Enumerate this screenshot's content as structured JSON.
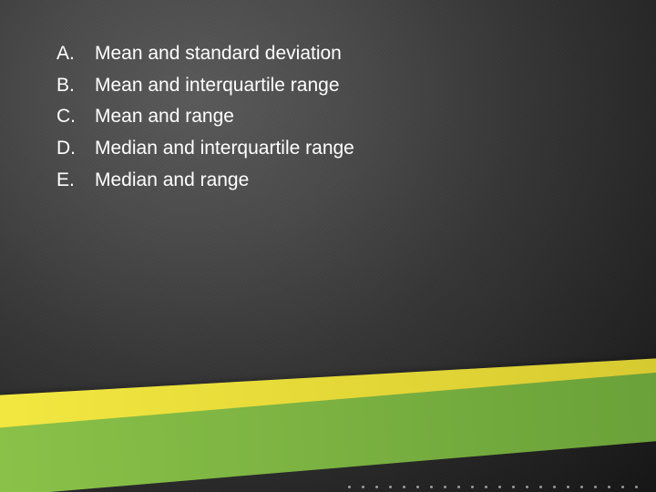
{
  "options": [
    {
      "letter": "A.",
      "text": "Mean and standard deviation"
    },
    {
      "letter": "B.",
      "text": "Mean and interquartile range"
    },
    {
      "letter": "C.",
      "text": "Mean and range"
    },
    {
      "letter": "D.",
      "text": "Median and interquartile range"
    },
    {
      "letter": "E.",
      "text": "Median and range"
    }
  ],
  "styling": {
    "slide_width": 720,
    "slide_height": 540,
    "text_color": "#ffffff",
    "font_size_pt": 16,
    "background_gradient": {
      "type": "radial",
      "stops": [
        "#5a5a5a",
        "#4a4a4a",
        "#363636",
        "#252525",
        "#151515"
      ]
    },
    "stripe_yellow_colors": [
      "#f4e842",
      "#e8dc3a",
      "#d4c830"
    ],
    "stripe_green_colors": [
      "#8bc34a",
      "#7cb342",
      "#689f38"
    ],
    "dot_count": 22,
    "dot_color": "rgba(255,255,255,0.55)"
  }
}
